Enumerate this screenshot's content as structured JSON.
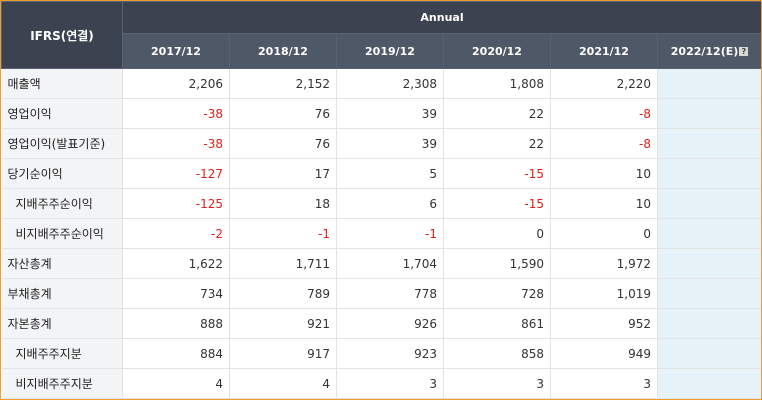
{
  "table": {
    "corner_label": "IFRS(연결)",
    "group_label": "Annual",
    "years": [
      "2017/12",
      "2018/12",
      "2019/12",
      "2020/12",
      "2021/12",
      "2022/12(E)"
    ],
    "estimate_help_icon": "question-icon",
    "negative_color": "#e0201c",
    "rows": [
      {
        "label": "매출액",
        "indent": false,
        "values": [
          "2,206",
          "2,152",
          "2,308",
          "1,808",
          "2,220",
          ""
        ]
      },
      {
        "label": "영업이익",
        "indent": false,
        "values": [
          "-38",
          "76",
          "39",
          "22",
          "-8",
          ""
        ]
      },
      {
        "label": "영업이익(발표기준)",
        "indent": false,
        "values": [
          "-38",
          "76",
          "39",
          "22",
          "-8",
          ""
        ]
      },
      {
        "label": "당기순이익",
        "indent": false,
        "values": [
          "-127",
          "17",
          "5",
          "-15",
          "10",
          ""
        ]
      },
      {
        "label": "지배주주순이익",
        "indent": true,
        "values": [
          "-125",
          "18",
          "6",
          "-15",
          "10",
          ""
        ]
      },
      {
        "label": "비지배주주순이익",
        "indent": true,
        "values": [
          "-2",
          "-1",
          "-1",
          "0",
          "0",
          ""
        ]
      },
      {
        "label": "자산총계",
        "indent": false,
        "values": [
          "1,622",
          "1,711",
          "1,704",
          "1,590",
          "1,972",
          ""
        ]
      },
      {
        "label": "부채총계",
        "indent": false,
        "values": [
          "734",
          "789",
          "778",
          "728",
          "1,019",
          ""
        ]
      },
      {
        "label": "자본총계",
        "indent": false,
        "values": [
          "888",
          "921",
          "926",
          "861",
          "952",
          ""
        ]
      },
      {
        "label": "지배주주지분",
        "indent": true,
        "values": [
          "884",
          "917",
          "923",
          "858",
          "949",
          ""
        ]
      },
      {
        "label": "비지배주주지분",
        "indent": true,
        "values": [
          "4",
          "4",
          "3",
          "3",
          "3",
          ""
        ]
      }
    ]
  }
}
